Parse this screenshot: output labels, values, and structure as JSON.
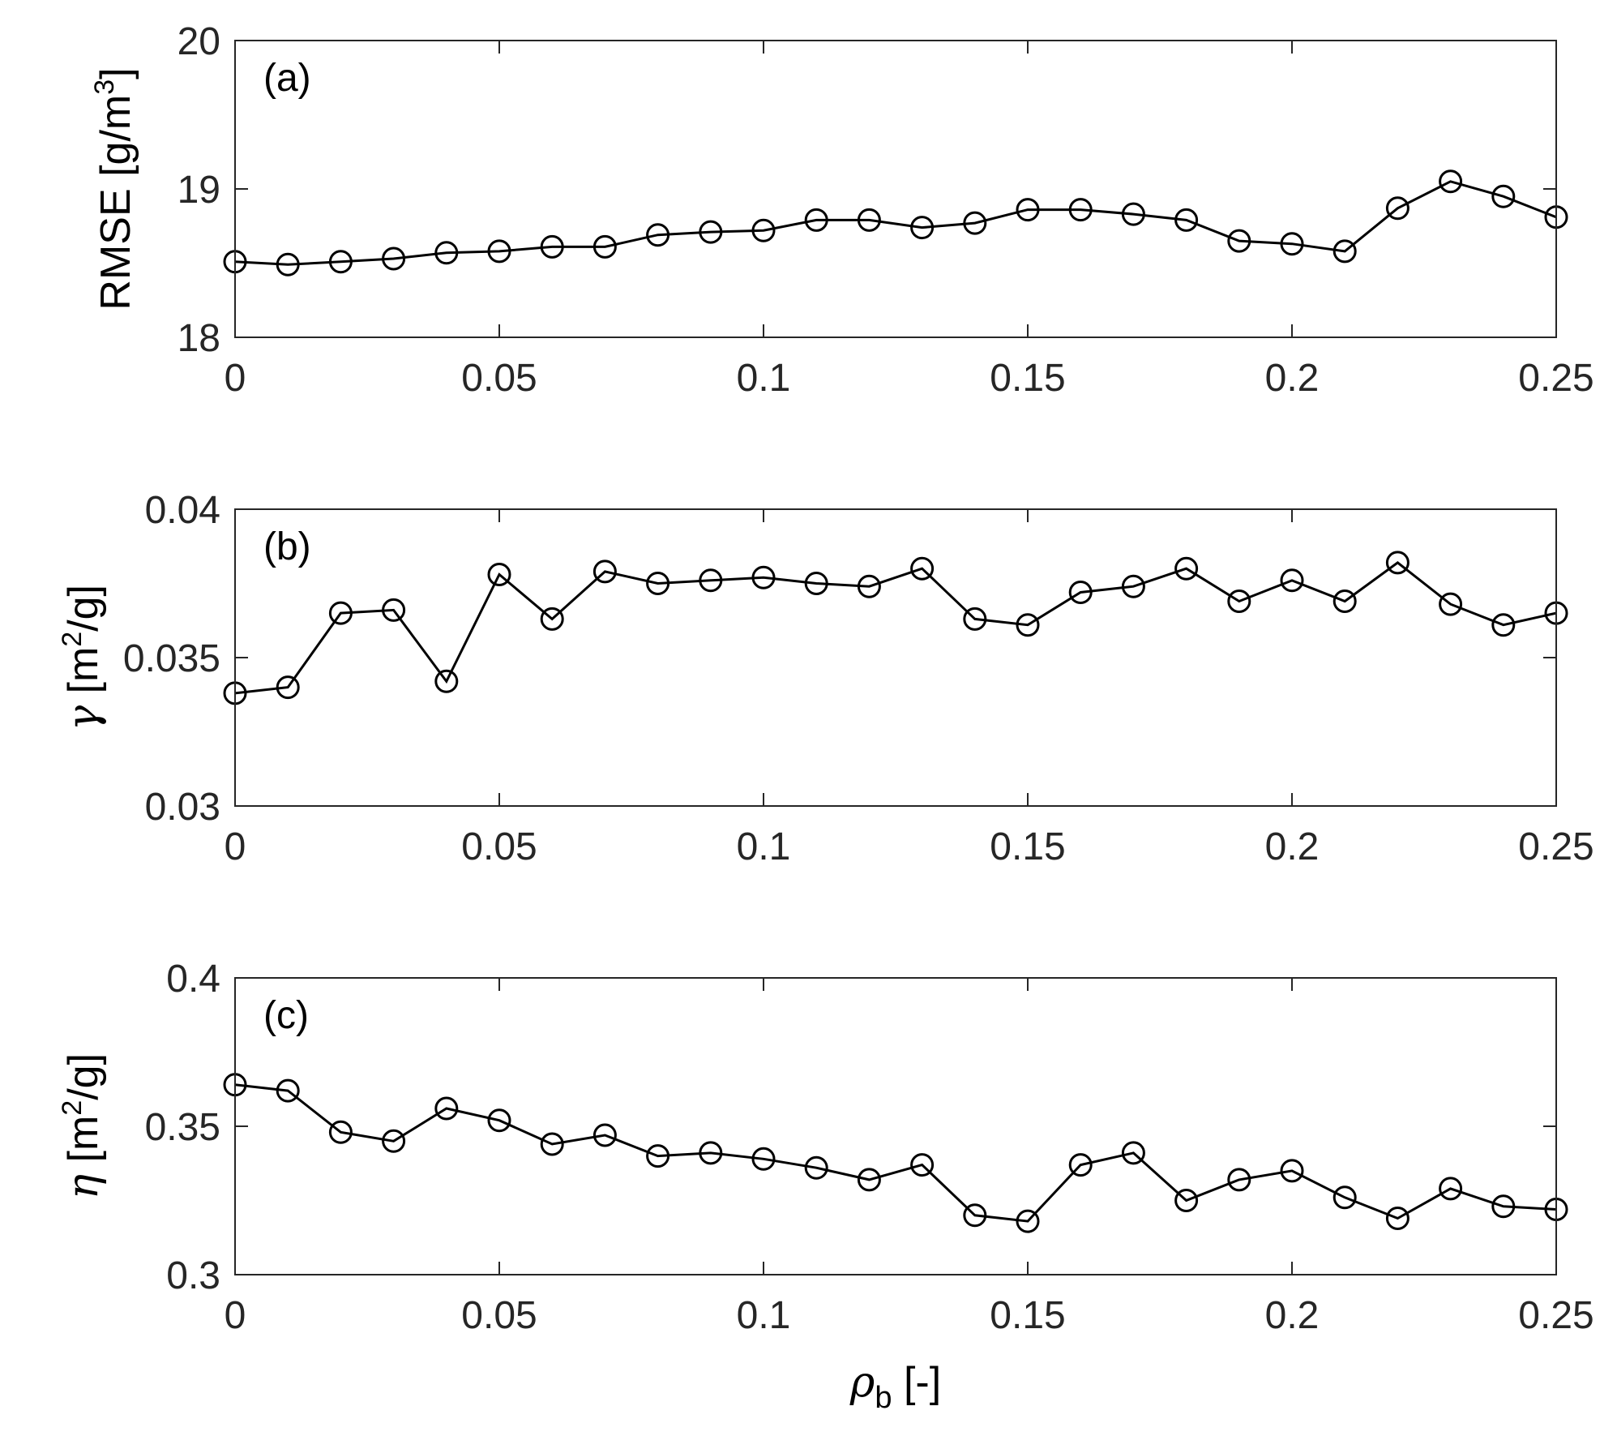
{
  "chart_data": [
    {
      "type": "line",
      "panel": "(a)",
      "title": "",
      "xlabel": "",
      "ylabel": "RMSE [g/m3]",
      "ylabel_main": "RMSE [g/m",
      "ylabel_sup": "3",
      "ylabel_tail": "]",
      "xlim": [
        0,
        0.25
      ],
      "ylim": [
        18,
        20
      ],
      "xticks": [
        0,
        0.05,
        0.1,
        0.15,
        0.2,
        0.25
      ],
      "xtick_labels": [
        "0",
        "0.05",
        "0.1",
        "0.15",
        "0.2",
        "0.25"
      ],
      "yticks": [
        18,
        19,
        20
      ],
      "ytick_labels": [
        "18",
        "19",
        "20"
      ],
      "marker": "circle",
      "x": [
        0,
        0.01,
        0.02,
        0.03,
        0.04,
        0.05,
        0.06,
        0.07,
        0.08,
        0.09,
        0.1,
        0.11,
        0.12,
        0.13,
        0.14,
        0.15,
        0.16,
        0.17,
        0.18,
        0.19,
        0.2,
        0.21,
        0.22,
        0.23,
        0.24,
        0.25
      ],
      "y": [
        18.51,
        18.49,
        18.51,
        18.53,
        18.57,
        18.58,
        18.61,
        18.61,
        18.69,
        18.71,
        18.72,
        18.79,
        18.79,
        18.74,
        18.77,
        18.86,
        18.86,
        18.83,
        18.79,
        18.65,
        18.63,
        18.58,
        18.87,
        19.05,
        18.95,
        18.81
      ]
    },
    {
      "type": "line",
      "panel": "(b)",
      "title": "",
      "xlabel": "",
      "ylabel": "γ [m2/g]",
      "ylabel_symbol": "γ",
      "ylabel_main": " [m",
      "ylabel_sup": "2",
      "ylabel_tail": "/g]",
      "xlim": [
        0,
        0.25
      ],
      "ylim": [
        0.03,
        0.04
      ],
      "xticks": [
        0,
        0.05,
        0.1,
        0.15,
        0.2,
        0.25
      ],
      "xtick_labels": [
        "0",
        "0.05",
        "0.1",
        "0.15",
        "0.2",
        "0.25"
      ],
      "yticks": [
        0.03,
        0.035,
        0.04
      ],
      "ytick_labels": [
        "0.03",
        "0.035",
        "0.04"
      ],
      "marker": "circle",
      "x": [
        0,
        0.01,
        0.02,
        0.03,
        0.04,
        0.05,
        0.06,
        0.07,
        0.08,
        0.09,
        0.1,
        0.11,
        0.12,
        0.13,
        0.14,
        0.15,
        0.16,
        0.17,
        0.18,
        0.19,
        0.2,
        0.21,
        0.22,
        0.23,
        0.24,
        0.25
      ],
      "y": [
        0.0338,
        0.034,
        0.0365,
        0.0366,
        0.0342,
        0.0378,
        0.0363,
        0.0379,
        0.0375,
        0.0376,
        0.0377,
        0.0375,
        0.0374,
        0.038,
        0.0363,
        0.0361,
        0.0372,
        0.0374,
        0.038,
        0.0369,
        0.0376,
        0.0369,
        0.0382,
        0.0368,
        0.0361,
        0.0365
      ]
    },
    {
      "type": "line",
      "panel": "(c)",
      "title": "",
      "xlabel": "ρb [-]",
      "xlabel_symbol": "ρ",
      "xlabel_sub": "b",
      "xlabel_tail": " [-]",
      "ylabel": "η [m2/g]",
      "ylabel_symbol": "η",
      "ylabel_main": " [m",
      "ylabel_sup": "2",
      "ylabel_tail": "/g]",
      "xlim": [
        0,
        0.25
      ],
      "ylim": [
        0.3,
        0.4
      ],
      "xticks": [
        0,
        0.05,
        0.1,
        0.15,
        0.2,
        0.25
      ],
      "xtick_labels": [
        "0",
        "0.05",
        "0.1",
        "0.15",
        "0.2",
        "0.25"
      ],
      "yticks": [
        0.3,
        0.35,
        0.4
      ],
      "ytick_labels": [
        "0.3",
        "0.35",
        "0.4"
      ],
      "marker": "circle",
      "x": [
        0,
        0.01,
        0.02,
        0.03,
        0.04,
        0.05,
        0.06,
        0.07,
        0.08,
        0.09,
        0.1,
        0.11,
        0.12,
        0.13,
        0.14,
        0.15,
        0.16,
        0.17,
        0.18,
        0.19,
        0.2,
        0.21,
        0.22,
        0.23,
        0.24,
        0.25
      ],
      "y": [
        0.364,
        0.362,
        0.348,
        0.345,
        0.356,
        0.352,
        0.344,
        0.347,
        0.34,
        0.341,
        0.339,
        0.336,
        0.332,
        0.337,
        0.32,
        0.318,
        0.337,
        0.341,
        0.325,
        0.332,
        0.335,
        0.326,
        0.319,
        0.329,
        0.323,
        0.322
      ]
    }
  ]
}
